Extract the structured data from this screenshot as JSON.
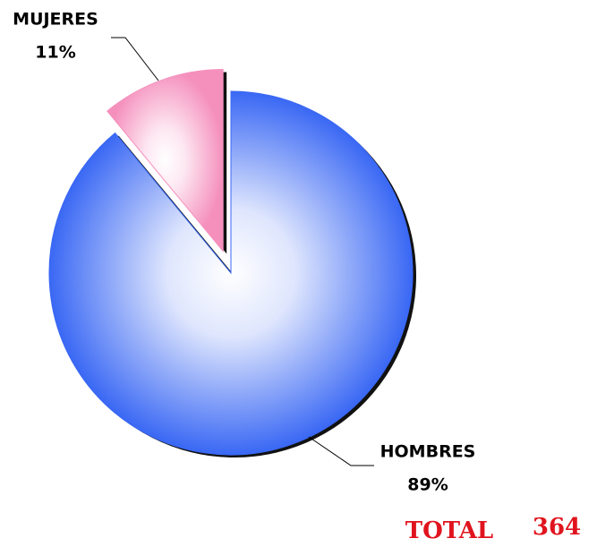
{
  "chart_data": {
    "type": "pie",
    "categories": [
      "HOMBRES",
      "MUJERES"
    ],
    "values": [
      89,
      11
    ],
    "value_labels": [
      "89%",
      "11%"
    ],
    "colors": [
      "#3a68f4",
      "#f590bd"
    ],
    "exploded": [
      false,
      true
    ],
    "total": {
      "label": "TOTAL",
      "value": 364
    }
  }
}
